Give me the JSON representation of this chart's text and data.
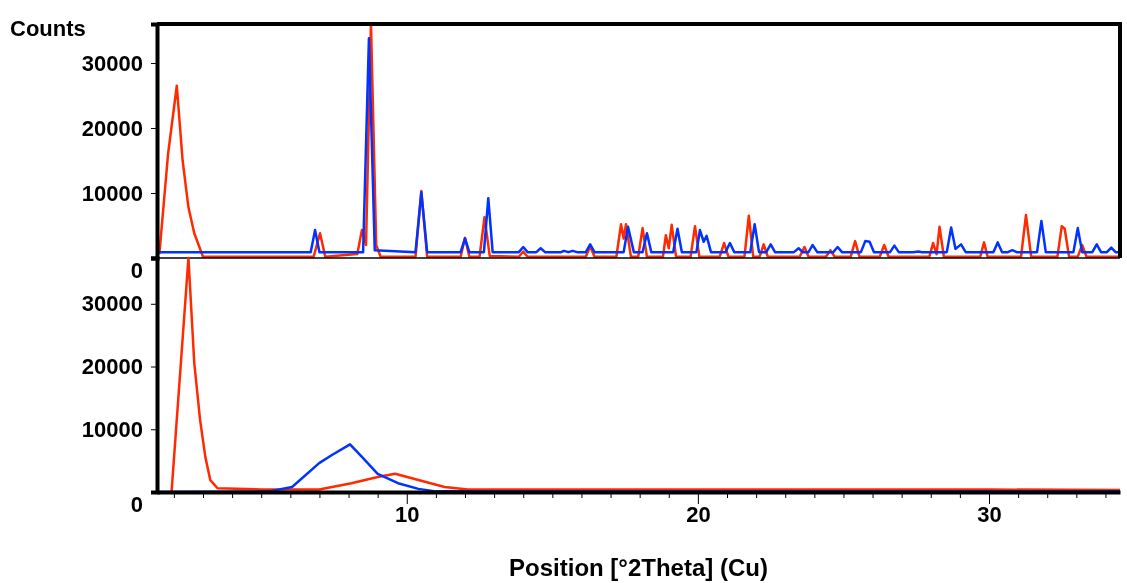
{
  "chart_data": [
    {
      "type": "line",
      "ylabel": "Counts",
      "xlim": [
        1.42,
        34.5
      ],
      "ylim": [
        0,
        36000
      ],
      "yticks": [
        0,
        10000,
        20000,
        30000
      ],
      "tick_labels": "y",
      "series": [
        {
          "color": "#ff2a00",
          "x": [
            1.5,
            1.8,
            2.1,
            2.3,
            2.5,
            2.7,
            3.0,
            3.3,
            6.8,
            7.02,
            7.2,
            8.3,
            8.46,
            8.6,
            8.77,
            8.95,
            9.1,
            10.3,
            10.5,
            10.7,
            11.85,
            12.0,
            12.15,
            12.5,
            12.67,
            12.85,
            13.85,
            14.0,
            14.15,
            16.15,
            16.3,
            16.45,
            17.2,
            17.36,
            17.45,
            17.53,
            17.7,
            17.95,
            18.1,
            18.25,
            18.8,
            18.9,
            19.0,
            19.1,
            19.25,
            19.75,
            19.9,
            20.05,
            20.75,
            20.9,
            21.05,
            21.6,
            21.75,
            21.9,
            22.12,
            22.26,
            22.4,
            23.5,
            23.66,
            23.8,
            24.4,
            24.55,
            24.7,
            25.25,
            25.4,
            25.55,
            26.25,
            26.4,
            26.55,
            27.95,
            28.08,
            28.2,
            28.3,
            28.45,
            29.7,
            29.83,
            29.95,
            31.1,
            31.27,
            31.45,
            32.35,
            32.5,
            32.6,
            32.75,
            33.05,
            33.2,
            33.35,
            34.5
          ],
          "values": [
            600,
            16000,
            26500,
            15000,
            7800,
            3800,
            200,
            200,
            200,
            3800,
            200,
            600,
            4300,
            2000,
            36000,
            2000,
            200,
            200,
            10300,
            200,
            200,
            3100,
            200,
            200,
            6300,
            300,
            200,
            1000,
            200,
            200,
            1800,
            200,
            200,
            5200,
            3000,
            5200,
            200,
            200,
            4600,
            200,
            200,
            3500,
            1500,
            5100,
            200,
            200,
            4900,
            200,
            200,
            2300,
            200,
            200,
            6500,
            200,
            200,
            2100,
            200,
            200,
            1700,
            200,
            200,
            1200,
            200,
            200,
            2600,
            200,
            200,
            2000,
            200,
            200,
            2300,
            600,
            4800,
            200,
            200,
            2400,
            200,
            200,
            6600,
            200,
            200,
            4900,
            4500,
            200,
            200,
            2000,
            200,
            200
          ]
        },
        {
          "color": "#0033ff",
          "x": [
            1.42,
            6.7,
            6.85,
            7.0,
            8.5,
            8.7,
            8.9,
            10.3,
            10.5,
            10.7,
            11.85,
            12.0,
            12.15,
            12.65,
            12.8,
            12.95,
            13.85,
            14.0,
            14.15,
            14.45,
            14.6,
            14.75,
            15.3,
            15.4,
            15.55,
            15.7,
            15.85,
            16.15,
            16.3,
            16.45,
            17.45,
            17.6,
            17.8,
            18.1,
            18.25,
            18.4,
            19.15,
            19.3,
            19.45,
            19.95,
            20.07,
            20.2,
            20.3,
            20.45,
            20.95,
            21.1,
            21.25,
            21.8,
            21.95,
            22.1,
            22.35,
            22.5,
            22.65,
            23.3,
            23.46,
            23.6,
            23.8,
            23.94,
            24.1,
            24.65,
            24.8,
            24.95,
            25.6,
            25.75,
            25.9,
            26.05,
            26.6,
            26.75,
            26.9,
            27.4,
            27.57,
            27.7,
            28.55,
            28.7,
            28.85,
            29.04,
            29.2,
            30.15,
            30.3,
            30.45,
            30.65,
            30.8,
            30.95,
            31.65,
            31.8,
            31.95,
            32.9,
            33.05,
            33.2,
            33.55,
            33.7,
            33.85,
            34.05,
            34.2,
            34.35,
            34.5
          ],
          "values": [
            900,
            900,
            4300,
            900,
            900,
            33800,
            1200,
            900,
            10100,
            900,
            900,
            3000,
            900,
            900,
            9200,
            900,
            900,
            1700,
            900,
            900,
            1500,
            900,
            900,
            1100,
            900,
            1100,
            900,
            900,
            2100,
            900,
            900,
            4800,
            900,
            900,
            3800,
            900,
            900,
            4500,
            900,
            900,
            4300,
            2500,
            3400,
            900,
            900,
            2300,
            900,
            900,
            5200,
            900,
            900,
            2100,
            900,
            900,
            1500,
            900,
            900,
            2000,
            900,
            900,
            1700,
            900,
            900,
            2600,
            2500,
            900,
            900,
            1900,
            900,
            900,
            1000,
            900,
            900,
            4700,
            1400,
            2100,
            900,
            900,
            2400,
            900,
            900,
            1200,
            900,
            900,
            5700,
            900,
            900,
            4600,
            900,
            900,
            2100,
            900,
            900,
            1600,
            900,
            900
          ]
        }
      ]
    },
    {
      "type": "line",
      "xlabel": "Position [°2Theta] (Cu)",
      "xlim": [
        1.42,
        34.5
      ],
      "ylim": [
        0,
        37300
      ],
      "yticks": [
        0,
        10000,
        20000,
        30000
      ],
      "xticks": [
        {
          "value": 2,
          "label": null
        },
        {
          "value": 3,
          "label": null
        },
        {
          "value": 4,
          "label": null
        },
        {
          "value": 5,
          "label": null
        },
        {
          "value": 6,
          "label": null
        },
        {
          "value": 7,
          "label": null
        },
        {
          "value": 8,
          "label": null
        },
        {
          "value": 9,
          "label": null
        },
        10,
        {
          "value": 11,
          "label": null
        },
        {
          "value": 12,
          "label": null
        },
        {
          "value": 13,
          "label": null
        },
        {
          "value": 14,
          "label": null
        },
        {
          "value": 15,
          "label": null
        },
        {
          "value": 16,
          "label": null
        },
        {
          "value": 17,
          "label": null
        },
        {
          "value": 18,
          "label": null
        },
        {
          "value": 19,
          "label": null
        },
        20,
        {
          "value": 21,
          "label": null
        },
        {
          "value": 22,
          "label": null
        },
        {
          "value": 23,
          "label": null
        },
        {
          "value": 24,
          "label": null
        },
        {
          "value": 25,
          "label": null
        },
        {
          "value": 26,
          "label": null
        },
        {
          "value": 27,
          "label": null
        },
        {
          "value": 28,
          "label": null
        },
        {
          "value": 29,
          "label": null
        },
        30,
        {
          "value": 31,
          "label": null
        },
        {
          "value": 32,
          "label": null
        },
        {
          "value": 33,
          "label": null
        },
        {
          "value": 34,
          "label": null
        }
      ],
      "series": [
        {
          "color": "#ff2a00",
          "x": [
            1.92,
            2.2,
            2.5,
            2.7,
            2.9,
            3.08,
            3.25,
            3.5,
            5.0,
            6.99,
            8.1,
            9.0,
            9.6,
            10.4,
            11.3,
            12.1,
            20,
            30,
            34.5
          ],
          "values": [
            0,
            18000,
            37300,
            20600,
            11500,
            5600,
            1900,
            600,
            400,
            400,
            1400,
            2400,
            2900,
            1900,
            800,
            400,
            400,
            400,
            300
          ]
        },
        {
          "color": "#0033ff",
          "x": [
            1.42,
            5.27,
            6.06,
            6.99,
            7.43,
            8.05,
            8.46,
            9.0,
            9.7,
            10.4,
            11.0,
            34.5
          ],
          "values": [
            0,
            100,
            800,
            4600,
            5900,
            7600,
            5600,
            2900,
            1400,
            500,
            100,
            100
          ]
        }
      ]
    }
  ]
}
